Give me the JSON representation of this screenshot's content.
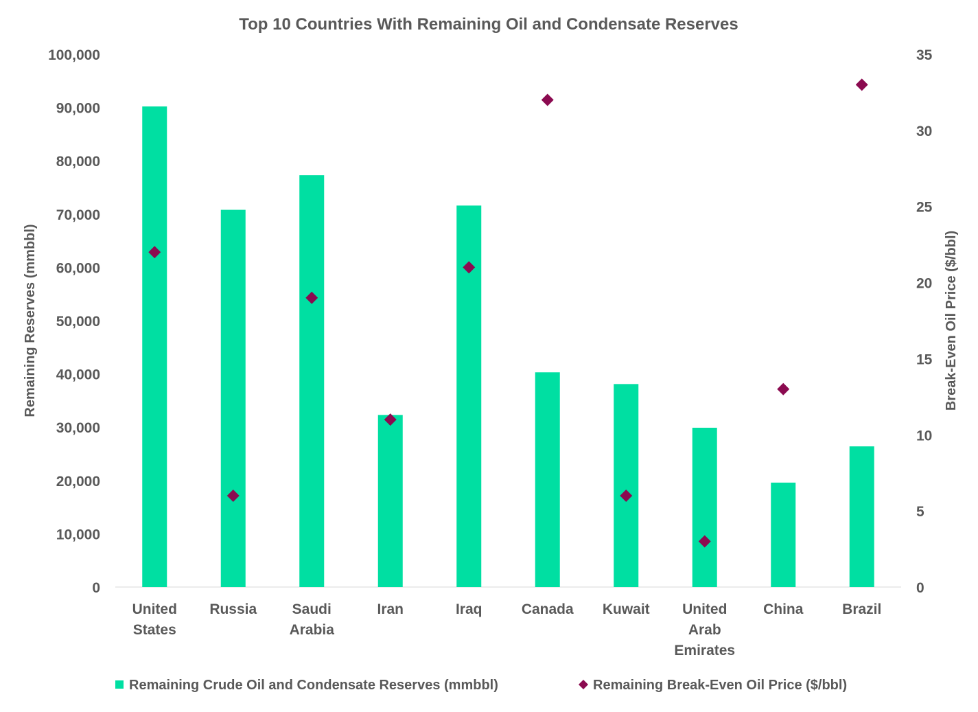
{
  "chart_data": {
    "type": "bar",
    "title": "Top 10 Countries With Remaining Oil and Condensate Reserves",
    "categories": [
      [
        "United",
        "States"
      ],
      [
        "Russia"
      ],
      [
        "Saudi",
        "Arabia"
      ],
      [
        "Iran"
      ],
      [
        "Iraq"
      ],
      [
        "Canada"
      ],
      [
        "Kuwait"
      ],
      [
        "United",
        "Arab",
        "Emirates"
      ],
      [
        "China"
      ],
      [
        "Brazil"
      ]
    ],
    "ylabel": "Remaining Reserves (mmbbl)",
    "ylim": [
      0,
      100000
    ],
    "yticks": [
      "0",
      "10,000",
      "20,000",
      "30,000",
      "40,000",
      "50,000",
      "60,000",
      "70,000",
      "80,000",
      "90,000",
      "100,000"
    ],
    "y2label": "Break-Even Oil Price ($/bbl)",
    "y2lim": [
      0,
      35
    ],
    "y2ticks": [
      "0",
      "5",
      "10",
      "15",
      "20",
      "25",
      "30",
      "35"
    ],
    "grid": false,
    "legend_position": "bottom",
    "series": [
      {
        "name": "Remaining Crude Oil and Condensate Reserves (mmbbl)",
        "type": "bar",
        "axis": "left",
        "color": "#00DFA2",
        "values": [
          90200,
          70800,
          77300,
          32300,
          71600,
          40300,
          38100,
          29900,
          19600,
          26400
        ]
      },
      {
        "name": "Remaining Break-Even Oil Price ($/bbl)",
        "type": "scatter",
        "marker": "diamond",
        "axis": "right",
        "color": "#8B0A50",
        "values": [
          22,
          6,
          19,
          11,
          21,
          32,
          6,
          3,
          13,
          33
        ]
      }
    ]
  }
}
